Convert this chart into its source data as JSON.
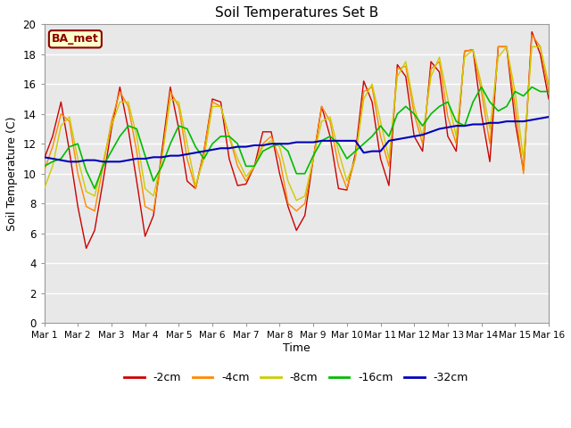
{
  "title": "Soil Temperatures Set B",
  "xlabel": "Time",
  "ylabel": "Soil Temperature (C)",
  "ylim": [
    0,
    20
  ],
  "xlim": [
    0,
    15
  ],
  "fig_bg_color": "#ffffff",
  "plot_bg_color": "#e8e8e8",
  "annotation_text": "BA_met",
  "annotation_bg": "#ffffcc",
  "annotation_border": "#8B0000",
  "annotation_text_color": "#8B0000",
  "xtick_labels": [
    "Mar 1",
    "Mar 2",
    "Mar 3",
    "Mar 4",
    "Mar 5",
    "Mar 6",
    "Mar 7",
    "Mar 8",
    "Mar 9",
    "Mar 10",
    "Mar 11",
    "Mar 12",
    "Mar 13",
    "Mar 14",
    "Mar 15",
    "Mar 16"
  ],
  "series_order": [
    "-2cm",
    "-4cm",
    "-8cm",
    "-16cm",
    "-32cm"
  ],
  "series": {
    "-2cm": {
      "color": "#cc0000",
      "lw": 1.0
    },
    "-4cm": {
      "color": "#ff8800",
      "lw": 1.0
    },
    "-8cm": {
      "color": "#cccc00",
      "lw": 1.0
    },
    "-16cm": {
      "color": "#00bb00",
      "lw": 1.2
    },
    "-32cm": {
      "color": "#0000bb",
      "lw": 1.5
    }
  },
  "data": {
    "x_days": [
      0,
      0.25,
      0.5,
      0.75,
      1.0,
      1.25,
      1.5,
      1.75,
      2.0,
      2.25,
      2.5,
      2.75,
      3.0,
      3.25,
      3.5,
      3.75,
      4.0,
      4.25,
      4.5,
      4.75,
      5.0,
      5.25,
      5.5,
      5.75,
      6.0,
      6.25,
      6.5,
      6.75,
      7.0,
      7.25,
      7.5,
      7.75,
      8.0,
      8.25,
      8.5,
      8.75,
      9.0,
      9.25,
      9.5,
      9.75,
      10.0,
      10.25,
      10.5,
      10.75,
      11.0,
      11.25,
      11.5,
      11.75,
      12.0,
      12.25,
      12.5,
      12.75,
      13.0,
      13.25,
      13.5,
      13.75,
      14.0,
      14.25,
      14.5,
      14.75,
      15.0
    ],
    "-2cm": [
      11.0,
      12.5,
      14.8,
      11.5,
      7.8,
      5.0,
      6.2,
      9.5,
      13.0,
      15.8,
      13.0,
      9.5,
      5.8,
      7.2,
      11.5,
      15.8,
      13.0,
      9.5,
      9.0,
      11.5,
      15.0,
      14.8,
      11.0,
      9.2,
      9.3,
      10.5,
      12.8,
      12.8,
      10.0,
      7.8,
      6.2,
      7.2,
      11.0,
      14.5,
      12.5,
      9.0,
      8.9,
      11.3,
      16.2,
      14.8,
      11.0,
      9.2,
      17.3,
      16.5,
      12.5,
      11.5,
      17.5,
      16.8,
      12.5,
      11.5,
      18.2,
      18.3,
      14.0,
      10.8,
      18.5,
      18.5,
      13.5,
      10.2,
      19.5,
      18.0,
      15.0
    ],
    "-4cm": [
      10.2,
      11.8,
      14.0,
      13.5,
      10.0,
      7.8,
      7.5,
      10.5,
      13.5,
      15.5,
      14.5,
      11.5,
      7.8,
      7.5,
      11.0,
      15.5,
      14.5,
      11.0,
      9.0,
      11.5,
      14.8,
      14.5,
      12.5,
      10.5,
      9.5,
      10.5,
      12.0,
      12.5,
      11.0,
      8.0,
      7.5,
      8.0,
      11.0,
      14.5,
      13.5,
      10.5,
      9.0,
      11.0,
      15.5,
      15.8,
      12.5,
      10.5,
      17.0,
      17.2,
      14.0,
      12.0,
      17.0,
      17.5,
      13.8,
      12.0,
      18.2,
      18.3,
      15.5,
      12.0,
      18.5,
      18.5,
      14.5,
      10.0,
      19.3,
      18.5,
      15.5
    ],
    "-8cm": [
      9.0,
      10.5,
      13.2,
      13.8,
      11.0,
      8.8,
      8.5,
      10.8,
      13.2,
      14.8,
      14.8,
      12.5,
      9.0,
      8.5,
      11.0,
      15.0,
      14.8,
      12.0,
      9.2,
      11.0,
      14.5,
      14.5,
      12.5,
      11.0,
      9.8,
      10.5,
      11.8,
      12.2,
      11.8,
      9.5,
      8.2,
      8.5,
      11.0,
      13.5,
      13.8,
      11.5,
      9.5,
      11.0,
      15.0,
      16.0,
      13.5,
      11.0,
      16.5,
      17.5,
      14.5,
      12.5,
      16.5,
      17.8,
      15.0,
      12.5,
      17.8,
      18.3,
      16.0,
      13.0,
      17.8,
      18.5,
      15.5,
      11.0,
      18.5,
      18.5,
      16.0
    ],
    "-16cm": [
      10.5,
      10.8,
      11.0,
      11.8,
      12.0,
      10.2,
      9.0,
      10.5,
      11.5,
      12.5,
      13.2,
      13.0,
      11.2,
      9.5,
      10.5,
      12.0,
      13.2,
      13.0,
      11.8,
      11.0,
      12.0,
      12.5,
      12.5,
      12.0,
      10.5,
      10.5,
      11.5,
      11.8,
      12.0,
      11.5,
      10.0,
      10.0,
      11.2,
      12.2,
      12.5,
      12.0,
      11.0,
      11.5,
      12.0,
      12.5,
      13.2,
      12.5,
      14.0,
      14.5,
      14.0,
      13.2,
      14.0,
      14.5,
      14.8,
      13.5,
      13.2,
      14.8,
      15.8,
      14.8,
      14.2,
      14.5,
      15.5,
      15.2,
      15.8,
      15.5,
      15.5
    ],
    "-32cm": [
      11.1,
      11.0,
      10.9,
      10.8,
      10.8,
      10.9,
      10.9,
      10.8,
      10.8,
      10.8,
      10.9,
      11.0,
      11.0,
      11.1,
      11.1,
      11.2,
      11.2,
      11.3,
      11.4,
      11.5,
      11.6,
      11.7,
      11.7,
      11.8,
      11.8,
      11.9,
      11.9,
      12.0,
      12.0,
      12.0,
      12.1,
      12.1,
      12.1,
      12.2,
      12.2,
      12.2,
      12.2,
      12.2,
      11.4,
      11.5,
      11.5,
      12.2,
      12.3,
      12.4,
      12.5,
      12.6,
      12.8,
      13.0,
      13.1,
      13.2,
      13.2,
      13.3,
      13.3,
      13.4,
      13.4,
      13.5,
      13.5,
      13.5,
      13.6,
      13.7,
      13.8
    ]
  }
}
